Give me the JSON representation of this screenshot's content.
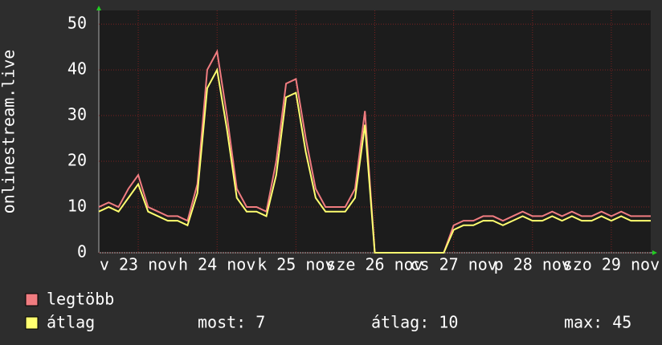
{
  "chart_data": {
    "type": "line",
    "ylabel": "onlinestream.live",
    "series": [
      {
        "name": "legtöbb",
        "color": "#f07c80",
        "values": [
          10,
          11,
          10,
          14,
          17,
          10,
          9,
          8,
          8,
          7,
          15,
          40,
          44,
          30,
          14,
          10,
          10,
          9,
          20,
          37,
          38,
          25,
          14,
          10,
          10,
          10,
          14,
          31,
          0,
          0,
          0,
          0,
          0,
          0,
          0,
          0,
          6,
          7,
          7,
          8,
          8,
          7,
          8,
          9,
          8,
          8,
          9,
          8,
          9,
          8,
          8,
          9,
          8,
          9,
          8,
          8,
          8
        ]
      },
      {
        "name": "átlag",
        "color": "#ffff70",
        "values": [
          9,
          10,
          9,
          12,
          15,
          9,
          8,
          7,
          7,
          6,
          13,
          36,
          40,
          27,
          12,
          9,
          9,
          8,
          17,
          34,
          35,
          22,
          12,
          9,
          9,
          9,
          12,
          28,
          0,
          0,
          0,
          0,
          0,
          0,
          0,
          0,
          5,
          6,
          6,
          7,
          7,
          6,
          7,
          8,
          7,
          7,
          8,
          7,
          8,
          7,
          7,
          8,
          7,
          8,
          7,
          7,
          7
        ]
      }
    ],
    "xlim": [
      0,
      56
    ],
    "xticks": [
      {
        "value": 4,
        "label": "v 23 nov"
      },
      {
        "value": 12,
        "label": "h 24 nov"
      },
      {
        "value": 20,
        "label": "k 25 nov"
      },
      {
        "value": 28,
        "label": "sze 26 nov"
      },
      {
        "value": 36,
        "label": "cs 27 nov"
      },
      {
        "value": 44,
        "label": "p 28 nov"
      },
      {
        "value": 52,
        "label": "szo 29 nov"
      }
    ],
    "ylim": [
      0,
      53
    ],
    "yticks": [
      0,
      10,
      20,
      30,
      40,
      50
    ],
    "grid": true,
    "stats": [
      "most: 7",
      "átlag: 10",
      "max: 45"
    ]
  }
}
